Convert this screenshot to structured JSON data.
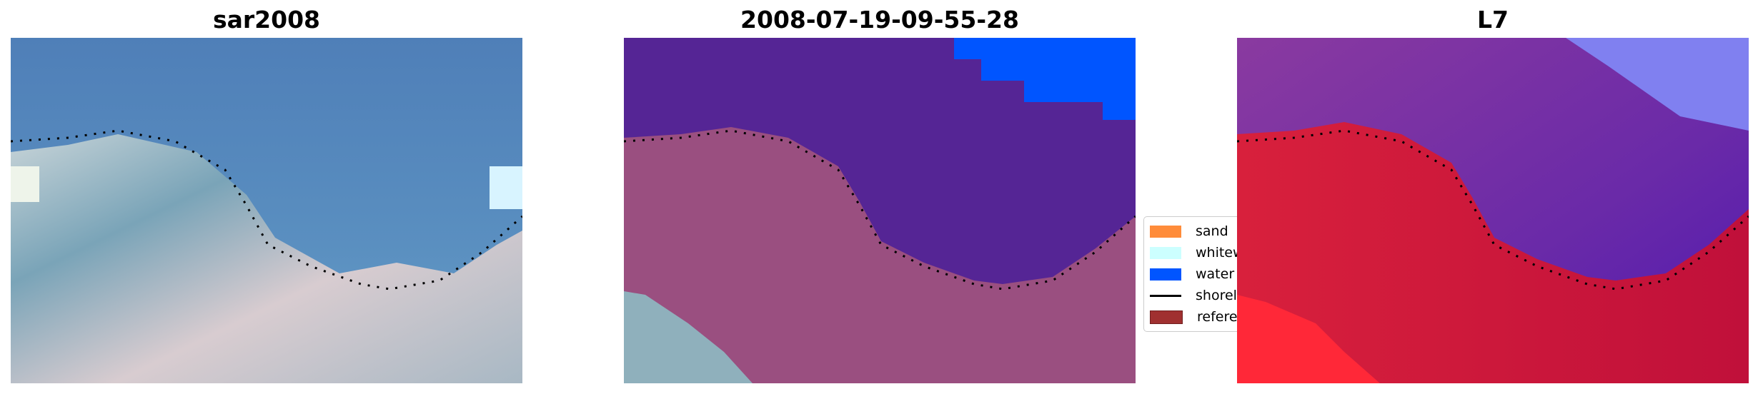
{
  "panels": [
    {
      "title": "sar2008"
    },
    {
      "title": "2008-07-19-09-55-28"
    },
    {
      "title": "L7"
    }
  ],
  "legend": {
    "placement": "center-right of middle panel",
    "items": [
      {
        "label": "sand",
        "color": "#ff8c3a",
        "kind": "patch"
      },
      {
        "label": "whitewater",
        "color": "#ccffff",
        "kind": "patch"
      },
      {
        "label": "water",
        "color": "#0055ff",
        "kind": "patch"
      },
      {
        "label": "shoreline",
        "color": "#000000",
        "kind": "line"
      },
      {
        "label": "reference",
        "color": "#a03030",
        "kind": "patch"
      }
    ]
  },
  "chart_data": {
    "type": "image",
    "panels": [
      "sar2008",
      "2008-07-19-09-55-28",
      "L7"
    ],
    "axes": "off",
    "shoreline_style": "black dotted"
  }
}
